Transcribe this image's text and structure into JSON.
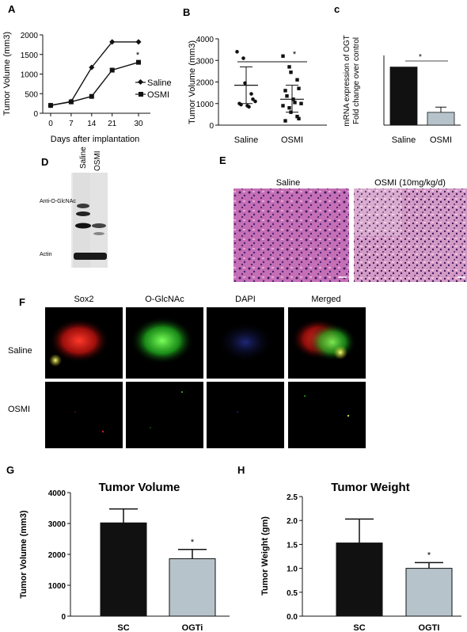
{
  "panel_letters": {
    "A": "A",
    "B": "B",
    "C": "c",
    "D": "D",
    "E": "E",
    "F": "F",
    "G": "G",
    "H": "H"
  },
  "panel_d": {
    "lanes": [
      "Saline",
      "OSMI"
    ],
    "band_labels": [
      "Anti-O-GlcNAc",
      "Actin"
    ]
  },
  "panel_e": {
    "labels": [
      "Saline",
      "OSMI (10mg/kg/d)"
    ],
    "colors": {
      "stain_bg": "#c46fb6",
      "nuclei": "#3b1a5e",
      "pink": "#e9a6cf"
    }
  },
  "panel_f": {
    "columns": [
      "Sox2",
      "O-GlcNAc",
      "DAPI",
      "Merged"
    ],
    "rows": [
      "Saline",
      "OSMI"
    ],
    "colors": {
      "sox2": "#e0201c",
      "oglcnac": "#2fd02b",
      "dapi": "#2a36c8",
      "bg": "#000000"
    }
  },
  "chart_data": [
    {
      "panel": "A",
      "type": "line",
      "xlabel": "Days after implantation",
      "ylabel": "Tumor Volume (mm3)",
      "x": [
        0,
        7,
        14,
        21,
        30
      ],
      "xticks": [
        "0",
        "7",
        "14",
        "21",
        "30"
      ],
      "ylim": [
        0,
        2000
      ],
      "yticks": [
        "0",
        "500",
        "1000",
        "1500",
        "2000"
      ],
      "series": [
        {
          "name": "Saline",
          "marker": "diamond",
          "values": [
            200,
            300,
            1170,
            1820,
            1820
          ]
        },
        {
          "name": "OSMI",
          "marker": "square",
          "values": [
            200,
            290,
            430,
            1100,
            1300
          ]
        }
      ],
      "annotation": "*",
      "grid": false,
      "legend": "top-right"
    },
    {
      "panel": "B",
      "type": "scatter",
      "xlabel": "",
      "ylabel": "Tumor Volume (mm3)",
      "categories": [
        "Saline",
        "OSMI"
      ],
      "ylim": [
        0,
        4000
      ],
      "yticks": [
        "0",
        "1000",
        "2000",
        "3000",
        "4000"
      ],
      "series": [
        {
          "name": "Saline",
          "marker": "circle",
          "mean": 1850,
          "sd_upper": 2700,
          "sd_lower": 1000,
          "values": [
            3400,
            3100,
            1950,
            1450,
            1200,
            1000,
            950,
            900,
            850,
            1100
          ]
        },
        {
          "name": "OSMI",
          "marker": "square",
          "mean": 1200,
          "sd_upper": 1850,
          "sd_lower": 600,
          "values": [
            3200,
            2700,
            2450,
            2100,
            1700,
            1600,
            1350,
            1200,
            1050,
            1000,
            900,
            800,
            600,
            400,
            300,
            200
          ]
        }
      ],
      "annotation": "*",
      "grid": false
    },
    {
      "panel": "C",
      "type": "bar",
      "xlabel": "",
      "ylabel": "mRNA expression of OGT Fold change over control",
      "ylabel_lines": [
        "mRNA expression of OGT",
        "Fold change over control"
      ],
      "categories": [
        "Saline",
        "OSMI"
      ],
      "values": [
        1.0,
        0.22
      ],
      "errors": [
        0,
        0.09
      ],
      "ylim": [
        0,
        1.2
      ],
      "colors": [
        "#111111",
        "#b7c3cb"
      ],
      "annotation": "*",
      "grid": false
    },
    {
      "panel": "G",
      "type": "bar",
      "title": "Tumor Volume",
      "xlabel": "",
      "ylabel": "Tumor Volume (mm3)",
      "categories": [
        "SC",
        "OGTi"
      ],
      "values": [
        3020,
        1860
      ],
      "errors": [
        450,
        300
      ],
      "ylim": [
        0,
        4000
      ],
      "yticks": [
        "0",
        "1000",
        "2000",
        "3000",
        "4000"
      ],
      "colors": [
        "#111111",
        "#b7c3cb"
      ],
      "annotation": "*",
      "grid": false
    },
    {
      "panel": "H",
      "type": "bar",
      "title": "Tumor Weight",
      "xlabel": "",
      "ylabel": "Tumor Weight (gm)",
      "categories": [
        "SC",
        "OGTI"
      ],
      "values": [
        1.53,
        1.0
      ],
      "errors": [
        0.5,
        0.12
      ],
      "ylim": [
        0,
        2.5
      ],
      "yticks": [
        "0.0",
        "0.5",
        "1.0",
        "1.5",
        "2.0",
        "2.5"
      ],
      "colors": [
        "#111111",
        "#b7c3cb"
      ],
      "annotation": "*",
      "grid": false
    }
  ]
}
